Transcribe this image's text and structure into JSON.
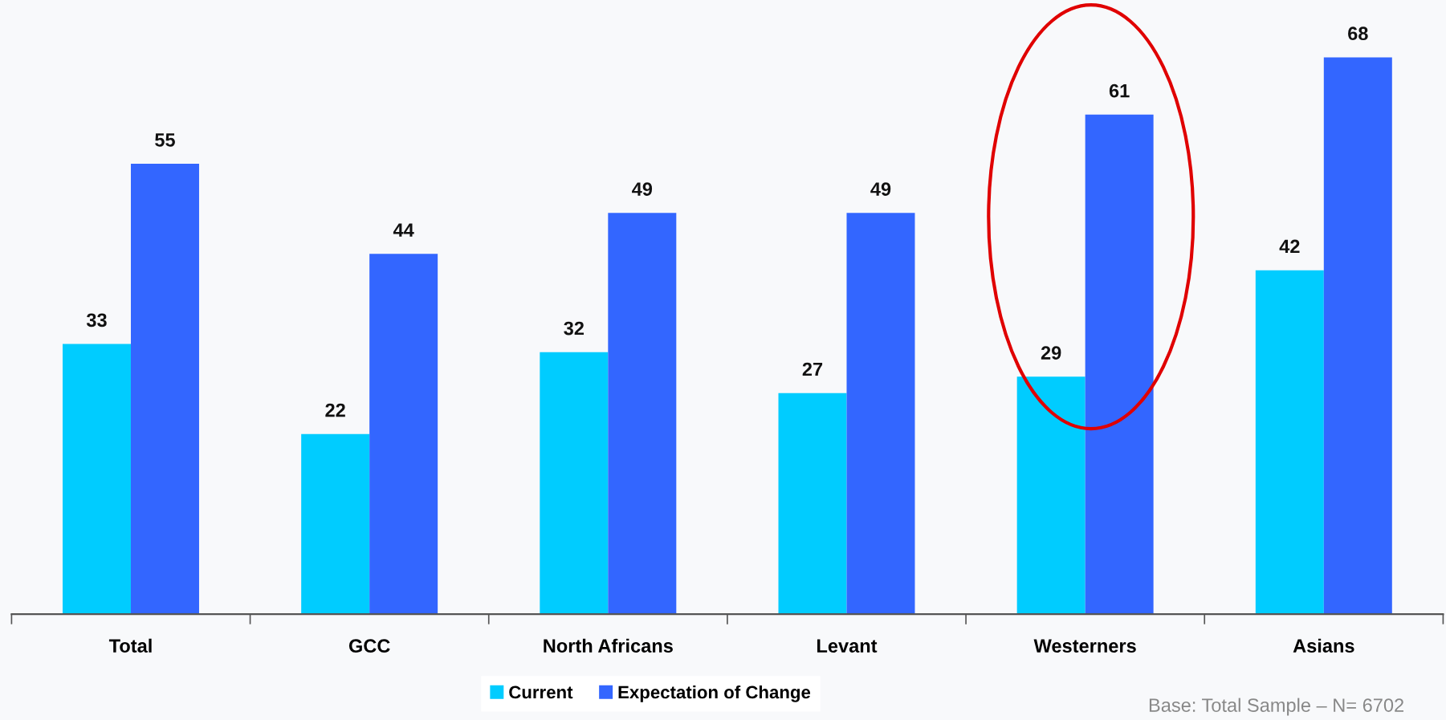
{
  "chart_data": {
    "type": "bar",
    "categories": [
      "Total",
      "GCC",
      "North Africans",
      "Levant",
      "Westerners",
      "Asians"
    ],
    "series": [
      {
        "name": "Current",
        "color": "#00ccff",
        "values": [
          33,
          22,
          32,
          27,
          29,
          42
        ]
      },
      {
        "name": "Expectation of Change",
        "color": "#3366ff",
        "values": [
          55,
          44,
          49,
          49,
          61,
          68
        ]
      }
    ],
    "ylim": [
      0,
      75
    ],
    "data_labels": true,
    "legend": "bottom",
    "grid": false,
    "annotations": [
      "Base: Total Sample – N= 6702"
    ]
  }
}
